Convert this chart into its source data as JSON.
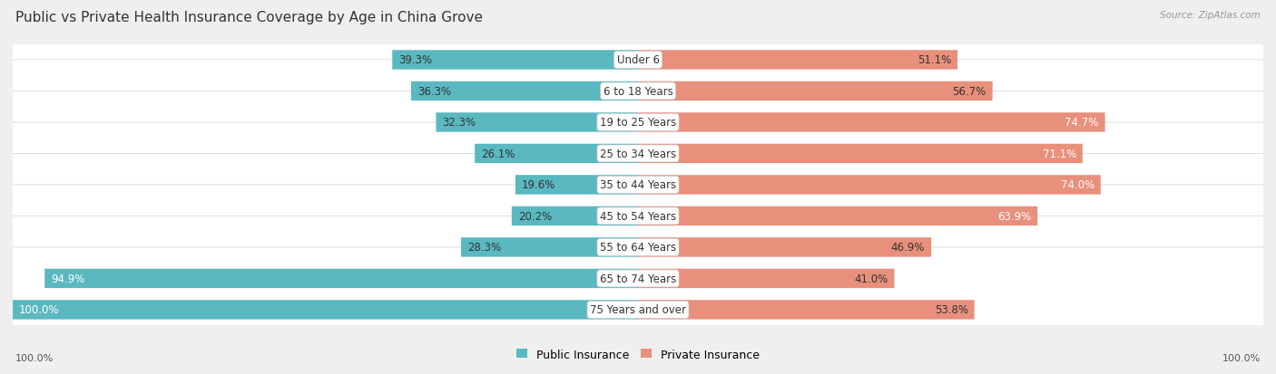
{
  "title": "Public vs Private Health Insurance Coverage by Age in China Grove",
  "source": "Source: ZipAtlas.com",
  "categories": [
    "Under 6",
    "6 to 18 Years",
    "19 to 25 Years",
    "25 to 34 Years",
    "35 to 44 Years",
    "45 to 54 Years",
    "55 to 64 Years",
    "65 to 74 Years",
    "75 Years and over"
  ],
  "public_values": [
    39.3,
    36.3,
    32.3,
    26.1,
    19.6,
    20.2,
    28.3,
    94.9,
    100.0
  ],
  "private_values": [
    51.1,
    56.7,
    74.7,
    71.1,
    74.0,
    63.9,
    46.9,
    41.0,
    53.8
  ],
  "public_color": "#5ab8c0",
  "private_color": "#e8907c",
  "bg_color": "#efefef",
  "row_bg_color": "#ffffff",
  "row_edge_color": "#d8d8d8",
  "max_value": 100.0,
  "title_fontsize": 11,
  "value_fontsize": 8.5,
  "cat_fontsize": 8.5,
  "legend_fontsize": 9,
  "axis_label_fontsize": 8
}
